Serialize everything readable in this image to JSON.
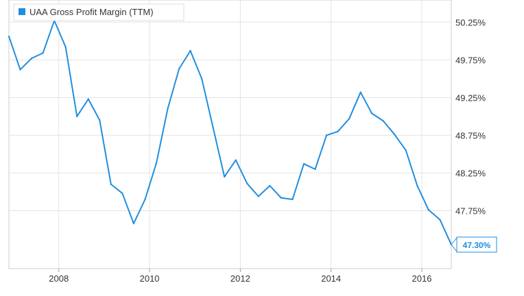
{
  "chart_data": {
    "type": "line",
    "title": "",
    "xlabel": "",
    "ylabel": "",
    "legend": {
      "position": "top-left",
      "label": "UAA Gross Profit Margin (TTM)"
    },
    "series": [
      {
        "name": "UAA Gross Profit Margin (TTM)",
        "color": "#1f8ee0",
        "x": [
          2006.9,
          2007.15,
          2007.4,
          2007.65,
          2007.9,
          2008.15,
          2008.4,
          2008.65,
          2008.9,
          2009.15,
          2009.4,
          2009.65,
          2009.9,
          2010.15,
          2010.4,
          2010.65,
          2010.9,
          2011.15,
          2011.4,
          2011.65,
          2011.9,
          2012.15,
          2012.4,
          2012.65,
          2012.9,
          2013.15,
          2013.4,
          2013.65,
          2013.9,
          2014.15,
          2014.4,
          2014.65,
          2014.9,
          2015.15,
          2015.4,
          2015.65,
          2015.9,
          2016.15,
          2016.4,
          2016.65
        ],
        "y": [
          50.06,
          49.62,
          49.77,
          49.84,
          50.27,
          49.92,
          49.0,
          49.23,
          48.95,
          48.1,
          47.98,
          47.58,
          47.9,
          48.38,
          49.1,
          49.63,
          49.87,
          49.5,
          48.85,
          48.2,
          48.42,
          48.11,
          47.94,
          48.08,
          47.92,
          47.9,
          48.37,
          48.3,
          48.75,
          48.8,
          48.97,
          49.32,
          49.04,
          48.94,
          48.76,
          48.55,
          48.08,
          47.76,
          47.63,
          47.3
        ]
      }
    ],
    "x_ticks": [
      "2008",
      "2010",
      "2012",
      "2014",
      "2016"
    ],
    "x_tick_values": [
      2008,
      2010,
      2012,
      2014,
      2016
    ],
    "xlim": [
      2006.9,
      2016.65
    ],
    "y_ticks": [
      "50.25%",
      "49.75%",
      "49.25%",
      "48.75%",
      "48.25%",
      "47.75%"
    ],
    "y_tick_values": [
      50.25,
      49.75,
      49.25,
      48.75,
      48.25,
      47.75
    ],
    "ylim": [
      47.3,
      50.28
    ],
    "grid": true,
    "last_value_label": "47.30%"
  }
}
